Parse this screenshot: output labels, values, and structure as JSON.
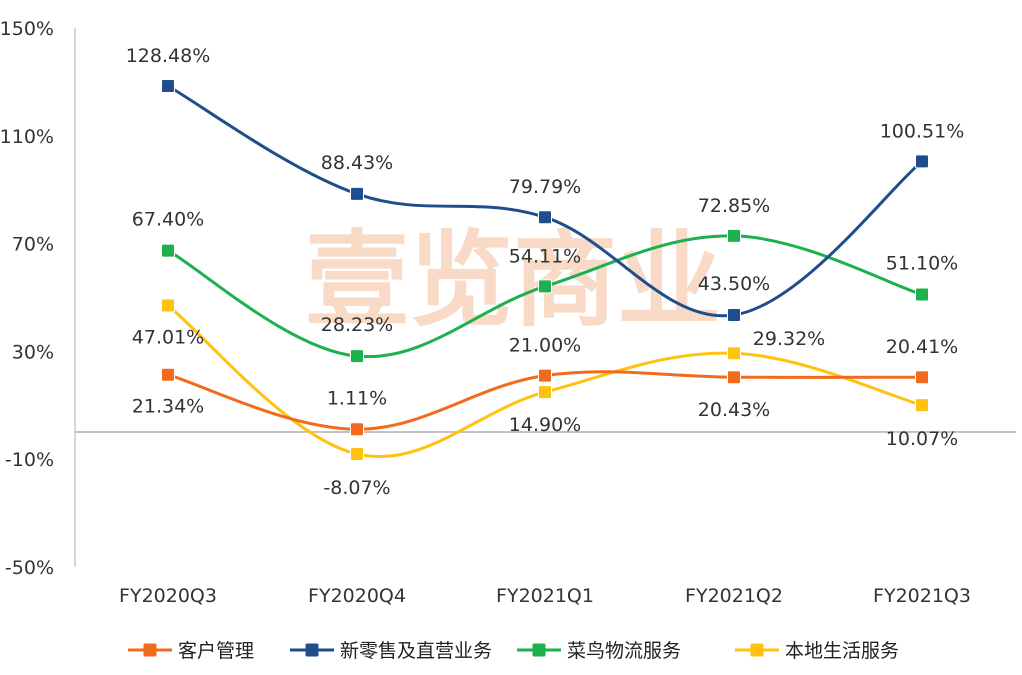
{
  "chart_data": {
    "type": "line",
    "categories": [
      "FY2020Q3",
      "FY2020Q4",
      "FY2021Q1",
      "FY2021Q2",
      "FY2021Q3"
    ],
    "ylim": [
      -50,
      150
    ],
    "yticks": [
      "150%",
      "110%",
      "70%",
      "30%",
      "-10%",
      "-50%"
    ],
    "series": [
      {
        "name": "客户管理",
        "color": "#F26B1D",
        "values": [
          21.34,
          1.11,
          21.0,
          20.43,
          20.41
        ],
        "labels": [
          "21.34%",
          "1.11%",
          "21.00%",
          "20.43%",
          "20.41%"
        ]
      },
      {
        "name": "新零售及直营业务",
        "color": "#1F4E8C",
        "values": [
          128.48,
          88.43,
          79.79,
          43.5,
          100.51
        ],
        "labels": [
          "128.48%",
          "88.43%",
          "79.79%",
          "43.50%",
          "100.51%"
        ]
      },
      {
        "name": "菜鸟物流服务",
        "color": "#1DB04E",
        "values": [
          67.4,
          28.23,
          54.11,
          72.85,
          51.1
        ],
        "labels": [
          "67.40%",
          "28.23%",
          "54.11%",
          "72.85%",
          "51.10%"
        ]
      },
      {
        "name": "本地生活服务",
        "color": "#FFC20E",
        "values": [
          47.01,
          -8.07,
          14.9,
          29.32,
          10.07
        ],
        "labels": [
          "47.01%",
          "-8.07%",
          "14.90%",
          "29.32%",
          "10.07%"
        ]
      }
    ],
    "watermark": "壹览商业"
  }
}
